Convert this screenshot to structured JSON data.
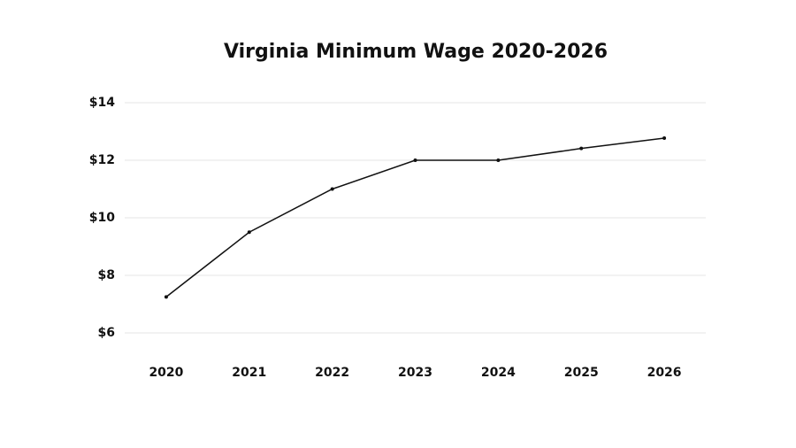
{
  "chart_data": {
    "type": "line",
    "title": "Virginia Minimum Wage 2020-2026",
    "categories": [
      "2020",
      "2021",
      "2022",
      "2023",
      "2024",
      "2025",
      "2026"
    ],
    "values": [
      7.25,
      9.5,
      11,
      12,
      12,
      12.41,
      12.77
    ],
    "color": "#111111",
    "ylim": [
      6,
      14
    ],
    "yticks": [
      {
        "value": 6,
        "label": "$6"
      },
      {
        "value": 8,
        "label": "$8"
      },
      {
        "value": 10,
        "label": "$10"
      },
      {
        "value": 12,
        "label": "$12"
      },
      {
        "value": 14,
        "label": "$14"
      }
    ],
    "grid": true
  }
}
